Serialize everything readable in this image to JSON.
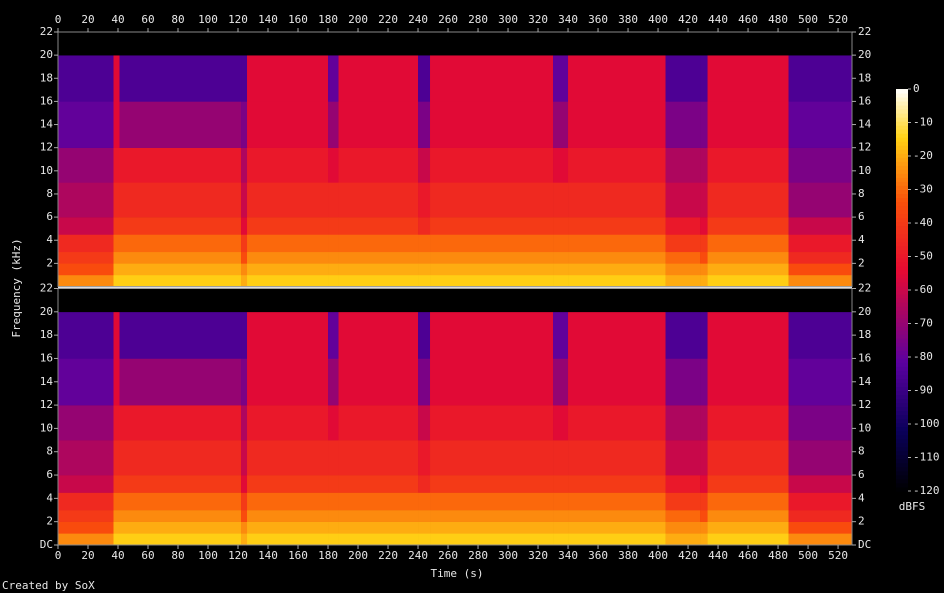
{
  "chart_data": {
    "type": "spectrogram",
    "xlabel": "Time (s)",
    "ylabel": "Frequency (kHz)",
    "footer": "Created by SoX",
    "xlim": [
      0,
      529.3
    ],
    "xticks": [
      0,
      20,
      40,
      60,
      80,
      100,
      120,
      140,
      160,
      180,
      200,
      220,
      240,
      260,
      280,
      300,
      320,
      340,
      360,
      380,
      400,
      420,
      440,
      460,
      480,
      500,
      520
    ],
    "time_edges": [
      0,
      37,
      41,
      122,
      126,
      180,
      187,
      240,
      248,
      330,
      340,
      405,
      428,
      433,
      487,
      529.3
    ],
    "freq_edges": [
      0,
      1,
      2,
      3,
      4.5,
      6,
      9,
      12,
      16,
      20,
      22
    ],
    "channels": [
      {
        "ylim": [
          0,
          22
        ],
        "yticks": [
          2,
          4,
          6,
          8,
          10,
          12,
          14,
          16,
          18,
          20,
          22
        ],
        "values": [
          [
            -25,
            -35,
            -40,
            -45,
            -60,
            -65,
            -70,
            -80,
            -85,
            -120
          ],
          [
            -15,
            -20,
            -25,
            -30,
            -40,
            -45,
            -50,
            -55,
            -55,
            -120
          ],
          [
            -15,
            -20,
            -25,
            -30,
            -40,
            -45,
            -50,
            -70,
            -85,
            -120
          ],
          [
            -20,
            -25,
            -35,
            -40,
            -55,
            -60,
            -65,
            -75,
            -85,
            -120
          ],
          [
            -15,
            -20,
            -25,
            -30,
            -40,
            -45,
            -50,
            -55,
            -55,
            -120
          ],
          [
            -15,
            -20,
            -25,
            -30,
            -40,
            -45,
            -55,
            -70,
            -80,
            -120
          ],
          [
            -15,
            -20,
            -25,
            -30,
            -40,
            -45,
            -50,
            -55,
            -55,
            -120
          ],
          [
            -15,
            -20,
            -25,
            -30,
            -45,
            -50,
            -60,
            -75,
            -85,
            -120
          ],
          [
            -15,
            -20,
            -25,
            -30,
            -40,
            -45,
            -50,
            -55,
            -55,
            -120
          ],
          [
            -15,
            -20,
            -25,
            -30,
            -40,
            -45,
            -55,
            -70,
            -80,
            -120
          ],
          [
            -15,
            -20,
            -25,
            -30,
            -40,
            -45,
            -50,
            -55,
            -55,
            -120
          ],
          [
            -20,
            -25,
            -30,
            -40,
            -50,
            -60,
            -65,
            -75,
            -85,
            -120
          ],
          [
            -20,
            -25,
            -35,
            -40,
            -55,
            -60,
            -65,
            -75,
            -85,
            -120
          ],
          [
            -15,
            -20,
            -25,
            -30,
            -40,
            -45,
            -50,
            -55,
            -55,
            -120
          ],
          [
            -25,
            -35,
            -45,
            -50,
            -60,
            -70,
            -75,
            -80,
            -85,
            -120
          ]
        ]
      },
      {
        "ylim": [
          0,
          22
        ],
        "yticks": [
          {
            "value": 0,
            "label": "DC"
          },
          2,
          4,
          6,
          8,
          10,
          12,
          14,
          16,
          18,
          20,
          22
        ],
        "values": [
          [
            -25,
            -35,
            -40,
            -45,
            -60,
            -65,
            -70,
            -80,
            -85,
            -120
          ],
          [
            -15,
            -20,
            -25,
            -30,
            -40,
            -45,
            -50,
            -55,
            -55,
            -120
          ],
          [
            -15,
            -20,
            -25,
            -30,
            -40,
            -45,
            -50,
            -70,
            -85,
            -120
          ],
          [
            -20,
            -25,
            -35,
            -40,
            -55,
            -60,
            -65,
            -75,
            -85,
            -120
          ],
          [
            -15,
            -20,
            -25,
            -30,
            -40,
            -45,
            -50,
            -55,
            -55,
            -120
          ],
          [
            -15,
            -20,
            -25,
            -30,
            -40,
            -45,
            -55,
            -70,
            -80,
            -120
          ],
          [
            -15,
            -20,
            -25,
            -30,
            -40,
            -45,
            -50,
            -55,
            -55,
            -120
          ],
          [
            -15,
            -20,
            -25,
            -30,
            -45,
            -50,
            -60,
            -75,
            -85,
            -120
          ],
          [
            -15,
            -20,
            -25,
            -30,
            -40,
            -45,
            -50,
            -55,
            -55,
            -120
          ],
          [
            -15,
            -20,
            -25,
            -30,
            -40,
            -45,
            -55,
            -70,
            -80,
            -120
          ],
          [
            -15,
            -20,
            -25,
            -30,
            -40,
            -45,
            -50,
            -55,
            -55,
            -120
          ],
          [
            -20,
            -25,
            -30,
            -40,
            -50,
            -60,
            -65,
            -75,
            -85,
            -120
          ],
          [
            -20,
            -25,
            -35,
            -40,
            -55,
            -60,
            -65,
            -75,
            -85,
            -120
          ],
          [
            -15,
            -20,
            -25,
            -30,
            -40,
            -45,
            -50,
            -55,
            -55,
            -120
          ],
          [
            -25,
            -35,
            -45,
            -50,
            -60,
            -70,
            -75,
            -80,
            -85,
            -120
          ]
        ]
      }
    ],
    "colorbar": {
      "label": "dBFS",
      "lim": [
        -120,
        0
      ],
      "ticks": [
        0,
        -10,
        -20,
        -30,
        -40,
        -50,
        -60,
        -70,
        -80,
        -90,
        -100,
        -110,
        -120
      ]
    }
  }
}
